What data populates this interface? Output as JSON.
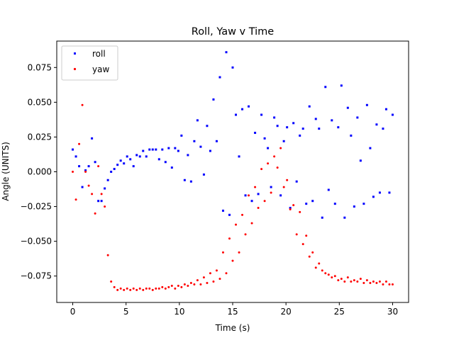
{
  "chart_data": {
    "type": "scatter",
    "title": "Roll, Yaw v Time",
    "xlabel": "Time (s)",
    "ylabel": "Angle (UNITS)",
    "xlim": [
      -1.5,
      31.5
    ],
    "ylim": [
      -0.094,
      0.094
    ],
    "xticks": [
      0,
      5,
      10,
      15,
      20,
      25,
      30
    ],
    "yticks": [
      -0.075,
      -0.05,
      -0.025,
      0.0,
      0.025,
      0.05,
      0.075
    ],
    "xtick_labels": [
      "0",
      "5",
      "10",
      "15",
      "20",
      "25",
      "30"
    ],
    "ytick_labels": [
      "−0.075",
      "−0.050",
      "−0.025",
      "0.000",
      "0.025",
      "0.050",
      "0.075"
    ],
    "legend": {
      "position": "upper-left"
    },
    "series": [
      {
        "name": "roll",
        "color": "#0000ff",
        "marker": "square",
        "x": [
          0.0,
          0.3,
          0.6,
          0.9,
          1.2,
          1.5,
          1.8,
          2.1,
          2.4,
          2.7,
          3.0,
          3.3,
          3.6,
          3.9,
          4.2,
          4.5,
          4.8,
          5.1,
          5.4,
          5.7,
          6.0,
          6.3,
          6.6,
          6.9,
          7.2,
          7.5,
          7.8,
          8.1,
          8.4,
          8.7,
          9.0,
          9.3,
          9.6,
          9.9,
          10.2,
          10.5,
          10.8,
          11.1,
          11.4,
          11.7,
          12.0,
          12.3,
          12.6,
          12.9,
          13.2,
          13.5,
          13.8,
          14.1,
          14.4,
          14.7,
          15.0,
          15.3,
          15.6,
          15.9,
          16.2,
          16.5,
          16.8,
          17.1,
          17.4,
          17.7,
          18.0,
          18.3,
          18.6,
          18.9,
          19.2,
          19.5,
          19.8,
          20.1,
          20.4,
          20.7,
          21.0,
          21.3,
          21.6,
          21.9,
          22.2,
          22.5,
          22.8,
          23.1,
          23.4,
          23.7,
          24.0,
          24.3,
          24.6,
          24.9,
          25.2,
          25.5,
          25.8,
          26.1,
          26.4,
          26.7,
          27.0,
          27.3,
          27.6,
          27.9,
          28.2,
          28.5,
          28.8,
          29.1,
          29.4,
          29.7,
          30.0
        ],
        "y": [
          0.016,
          0.011,
          0.004,
          -0.011,
          0.001,
          0.004,
          0.024,
          0.007,
          -0.021,
          -0.021,
          -0.012,
          -0.006,
          0.0,
          0.002,
          0.005,
          0.008,
          0.006,
          0.011,
          0.009,
          0.004,
          0.012,
          0.011,
          0.015,
          0.011,
          0.016,
          0.016,
          0.016,
          0.009,
          0.016,
          0.007,
          0.017,
          0.003,
          0.017,
          0.015,
          0.026,
          -0.006,
          0.012,
          -0.007,
          0.022,
          0.037,
          0.018,
          -0.002,
          0.033,
          0.015,
          0.052,
          0.022,
          0.068,
          -0.028,
          0.086,
          -0.031,
          0.075,
          0.041,
          0.011,
          0.045,
          -0.017,
          0.047,
          -0.021,
          0.028,
          -0.016,
          0.041,
          0.024,
          0.017,
          -0.011,
          0.039,
          0.033,
          -0.017,
          0.022,
          0.032,
          -0.026,
          0.035,
          -0.007,
          0.026,
          0.031,
          -0.023,
          0.047,
          -0.021,
          0.038,
          0.031,
          -0.033,
          0.061,
          -0.013,
          0.037,
          -0.023,
          0.032,
          0.062,
          -0.033,
          0.046,
          0.026,
          -0.025,
          0.039,
          0.008,
          -0.023,
          0.048,
          0.017,
          -0.018,
          0.034,
          -0.015,
          0.031,
          0.045,
          -0.015,
          0.041
        ]
      },
      {
        "name": "yaw",
        "color": "#ff0000",
        "marker": "circle",
        "x": [
          0.0,
          0.3,
          0.6,
          0.9,
          1.2,
          1.5,
          1.8,
          2.1,
          2.4,
          2.7,
          3.0,
          3.3,
          3.6,
          3.9,
          4.2,
          4.5,
          4.8,
          5.1,
          5.4,
          5.7,
          6.0,
          6.3,
          6.6,
          6.9,
          7.2,
          7.5,
          7.8,
          8.1,
          8.4,
          8.7,
          9.0,
          9.3,
          9.6,
          9.9,
          10.2,
          10.5,
          10.8,
          11.1,
          11.4,
          11.7,
          12.0,
          12.3,
          12.6,
          12.9,
          13.2,
          13.5,
          13.8,
          14.1,
          14.4,
          14.7,
          15.0,
          15.3,
          15.6,
          15.9,
          16.2,
          16.5,
          16.8,
          17.1,
          17.4,
          17.7,
          18.0,
          18.3,
          18.6,
          18.9,
          19.2,
          19.5,
          19.8,
          20.1,
          20.4,
          20.7,
          21.0,
          21.3,
          21.6,
          21.9,
          22.2,
          22.5,
          22.8,
          23.1,
          23.4,
          23.7,
          24.0,
          24.3,
          24.6,
          24.9,
          25.2,
          25.5,
          25.8,
          26.1,
          26.4,
          26.7,
          27.0,
          27.3,
          27.6,
          27.9,
          28.2,
          28.5,
          28.8,
          29.1,
          29.4,
          29.7,
          30.0
        ],
        "y": [
          0.0,
          -0.02,
          0.02,
          0.048,
          0.0,
          -0.01,
          -0.016,
          -0.03,
          0.004,
          -0.016,
          -0.025,
          -0.06,
          -0.079,
          -0.083,
          -0.085,
          -0.084,
          -0.085,
          -0.084,
          -0.085,
          -0.084,
          -0.085,
          -0.084,
          -0.085,
          -0.084,
          -0.084,
          -0.085,
          -0.084,
          -0.084,
          -0.083,
          -0.084,
          -0.083,
          -0.082,
          -0.084,
          -0.082,
          -0.083,
          -0.081,
          -0.082,
          -0.08,
          -0.081,
          -0.078,
          -0.081,
          -0.076,
          -0.08,
          -0.073,
          -0.079,
          -0.071,
          -0.077,
          -0.058,
          -0.073,
          -0.048,
          -0.064,
          -0.038,
          -0.058,
          -0.031,
          -0.045,
          -0.017,
          -0.037,
          -0.011,
          -0.026,
          0.002,
          -0.021,
          0.006,
          -0.015,
          0.011,
          0.003,
          0.017,
          -0.011,
          -0.006,
          -0.027,
          -0.024,
          -0.045,
          -0.029,
          -0.052,
          -0.046,
          -0.061,
          -0.058,
          -0.069,
          -0.066,
          -0.071,
          -0.073,
          -0.074,
          -0.076,
          -0.075,
          -0.078,
          -0.077,
          -0.079,
          -0.076,
          -0.079,
          -0.078,
          -0.079,
          -0.077,
          -0.08,
          -0.078,
          -0.08,
          -0.079,
          -0.08,
          -0.079,
          -0.081,
          -0.079,
          -0.081,
          -0.081
        ]
      }
    ]
  }
}
